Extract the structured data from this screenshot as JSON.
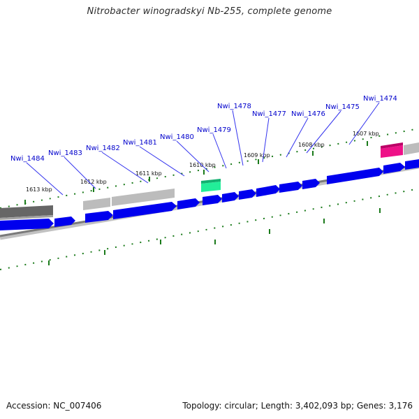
{
  "title": "Nitrobacter winogradskyi Nb-255, complete genome",
  "footer": {
    "accession": "Accession: NC_007406",
    "stats": "Topology: circular; Length: 3,402,093 bp; Genes: 3,176"
  },
  "colors": {
    "forward_gene": "#0000ee",
    "label": "#0000cc",
    "tick": "#1a7a1a",
    "highlight_green": "#22ee99",
    "highlight_pink": "#ee1188",
    "feature_gray": "#b5b5b5",
    "feature_dark": "#666666",
    "backbone": "#777777"
  },
  "kbp_labels": [
    "1613 kbp",
    "1612 kbp",
    "1611 kbp",
    "1610 kbp",
    "1609 kbp",
    "1608 kbp",
    "1607 kbp"
  ],
  "gene_labels": [
    "Nwi_1484",
    "Nwi_1483",
    "Nwi_1482",
    "Nwi_1481",
    "Nwi_1480",
    "Nwi_1479",
    "Nwi_1478",
    "Nwi_1477",
    "Nwi_1476",
    "Nwi_1475",
    "Nwi_1474"
  ]
}
